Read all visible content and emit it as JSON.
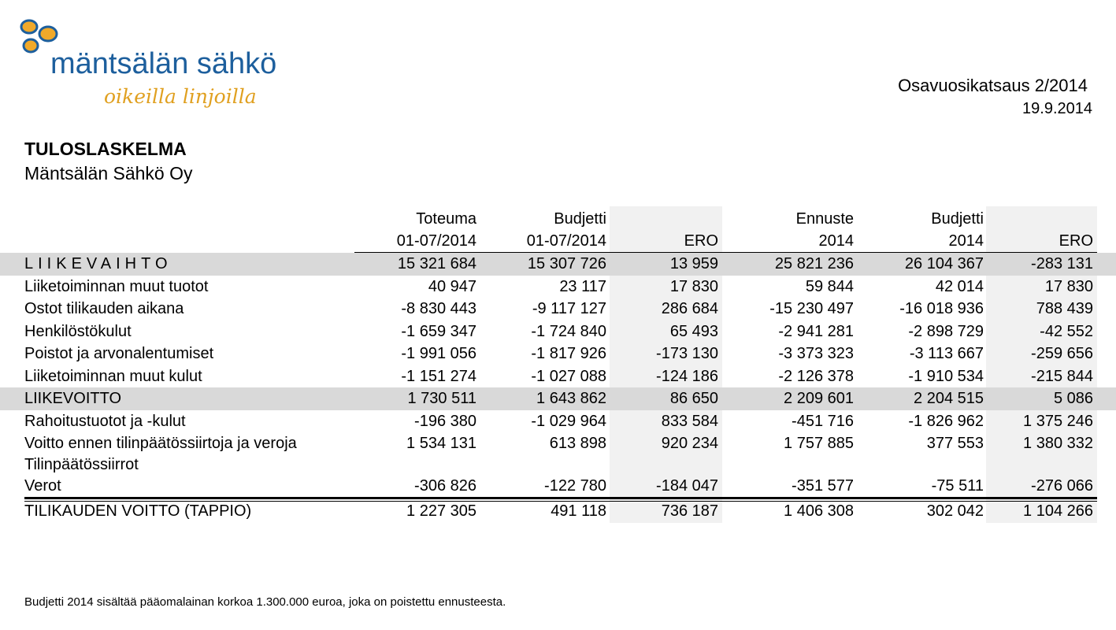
{
  "logo": {
    "company_name": "mäntsälän sähkö",
    "tagline": "oikeilla linjoilla",
    "brand_blue": "#1d5f9d",
    "brand_orange": "#f0a92a"
  },
  "header": {
    "report_title": "Osavuosikatsaus 2/2014",
    "report_date": "19.9.2014"
  },
  "document": {
    "title": "TULOSLASKELMA",
    "subtitle": "Mäntsälän Sähkö Oy"
  },
  "table": {
    "columns": [
      {
        "line1": "Toteuma",
        "line2": "01-07/2014"
      },
      {
        "line1": "Budjetti",
        "line2": "01-07/2014"
      },
      {
        "line1": "",
        "line2": "ERO"
      },
      {
        "line1": "Ennuste",
        "line2": "2014"
      },
      {
        "line1": "Budjetti",
        "line2": "2014"
      },
      {
        "line1": "",
        "line2": "ERO"
      }
    ],
    "rows": [
      {
        "label": "LIIKEVAIHTO",
        "values": [
          "15 321 684",
          "15 307 726",
          "13 959",
          "25 821 236",
          "26 104 367",
          "-283 131"
        ]
      },
      {
        "label": "Liiketoiminnan muut tuotot",
        "values": [
          "40 947",
          "23 117",
          "17 830",
          "59 844",
          "42 014",
          "17 830"
        ]
      },
      {
        "label": "Ostot tilikauden aikana",
        "values": [
          "-8 830 443",
          "-9 117 127",
          "286 684",
          "-15 230 497",
          "-16 018 936",
          "788 439"
        ]
      },
      {
        "label": "Henkilöstökulut",
        "values": [
          "-1 659 347",
          "-1 724 840",
          "65 493",
          "-2 941 281",
          "-2 898 729",
          "-42 552"
        ]
      },
      {
        "label": "Poistot ja arvonalentumiset",
        "values": [
          "-1 991 056",
          "-1 817 926",
          "-173 130",
          "-3 373 323",
          "-3 113 667",
          "-259 656"
        ]
      },
      {
        "label": "Liiketoiminnan muut kulut",
        "values": [
          "-1 151 274",
          "-1 027 088",
          "-124 186",
          "-2 126 378",
          "-1 910 534",
          "-215 844"
        ]
      },
      {
        "label": "LIIKEVOITTO",
        "values": [
          "1 730 511",
          "1 643 862",
          "86 650",
          "2 209 601",
          "2 204 515",
          "5 086"
        ]
      },
      {
        "label": "Rahoitustuotot ja -kulut",
        "values": [
          "-196 380",
          "-1 029 964",
          "833 584",
          "-451 716",
          "-1 826 962",
          "1 375 246"
        ]
      },
      {
        "label": "Voitto ennen tilinpäätössiirtoja ja veroja",
        "values": [
          "1 534 131",
          "613 898",
          "920 234",
          "1 757 885",
          "377 553",
          "1 380 332"
        ]
      },
      {
        "label": "Tilinpäätössiirrot",
        "values": [
          "",
          "",
          "",
          "",
          "",
          ""
        ]
      },
      {
        "label": "Verot",
        "values": [
          "-306 826",
          "-122 780",
          "-184 047",
          "-351 577",
          "-75 511",
          "-276 066"
        ]
      },
      {
        "label": "TILIKAUDEN VOITTO (TAPPIO)",
        "values": [
          "1 227 305",
          "491 118",
          "736 187",
          "1 406 308",
          "302 042",
          "1 104 266"
        ]
      }
    ]
  },
  "footnote": "Budjetti 2014 sisältää pääomalainan korkoa 1.300.000 euroa, joka on poistettu ennusteesta."
}
